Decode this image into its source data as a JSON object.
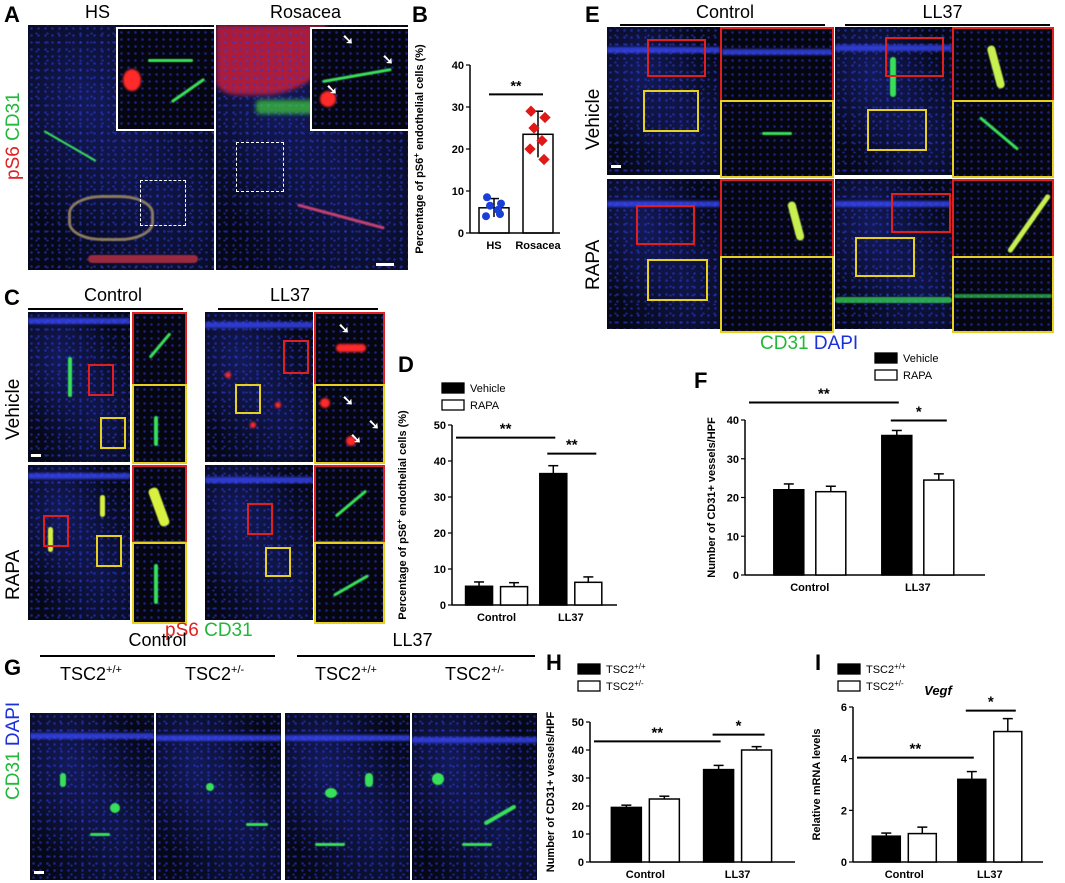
{
  "panels": {
    "A": {
      "letter": "A",
      "col1": "HS",
      "col2": "Rosacea",
      "ylabel_red": "pS6",
      "ylabel_green": "CD31"
    },
    "B": {
      "letter": "B"
    },
    "C": {
      "letter": "C",
      "col1": "Control",
      "col2": "LL37",
      "row1": "Vehicle",
      "row2": "RAPA",
      "stain_red": "pS6",
      "stain_green": "CD31"
    },
    "D": {
      "letter": "D"
    },
    "E": {
      "letter": "E",
      "col1": "Control",
      "col2": "LL37",
      "row1": "Vehicle",
      "row2": "RAPA",
      "stain_green": "CD31",
      "stain_blue": "DAPI"
    },
    "F": {
      "letter": "F"
    },
    "G": {
      "letter": "G",
      "group1": "Control",
      "group2": "LL37",
      "geno1": "TSC2",
      "geno1_sup": "+/+",
      "geno2": "TSC2",
      "geno2_sup": "+/-",
      "ylabel_green": "CD31",
      "ylabel_blue": "DAPI"
    },
    "H": {
      "letter": "H"
    },
    "I": {
      "letter": "I"
    }
  },
  "colors": {
    "red": "#ff2a2a",
    "green": "#38e05a",
    "blue": "#3448ff",
    "scatter_hs": "#1a3fd6",
    "scatter_rosacea": "#e01818"
  },
  "chart_data": [
    {
      "id": "B",
      "type": "scatter",
      "categories": [
        "HS",
        "Rosacea"
      ],
      "ylabel": "Percentage of pS6+ endothelial cells (%)",
      "ylabel_pre": "Percentage of pS6",
      "ylabel_sup": "+",
      "ylabel_post": " endothelial cells (%)",
      "ylim": [
        0,
        40
      ],
      "yticks": [
        0,
        10,
        20,
        30,
        40
      ],
      "bars": [
        6,
        23.5
      ],
      "errors": [
        2.2,
        5.5
      ],
      "points": [
        [
          8.5,
          7,
          6.5,
          5.5,
          4,
          4.5
        ],
        [
          29,
          27.5,
          25,
          22,
          20,
          17.5
        ]
      ],
      "significance": [
        {
          "from": 0,
          "to": 1,
          "label": "**"
        }
      ]
    },
    {
      "id": "D",
      "type": "bar",
      "categories": [
        "Control",
        "LL37"
      ],
      "series": [
        {
          "name": "Vehicle",
          "values": [
            5.2,
            36.5
          ],
          "errors": [
            1.2,
            2.2
          ]
        },
        {
          "name": "RAPA",
          "values": [
            5.1,
            6.3
          ],
          "errors": [
            1.1,
            1.5
          ]
        }
      ],
      "ylabel": "Percentage of pS6+ endothelial cells (%)",
      "ylabel_pre": "Percentage of pS6",
      "ylabel_sup": "+",
      "ylabel_post": " endothelial cells (%)",
      "ylim": [
        0,
        50
      ],
      "yticks": [
        0,
        10,
        20,
        30,
        40,
        50
      ],
      "significance": [
        {
          "label": "**",
          "span": "control-vehicle to ll37-vehicle"
        },
        {
          "label": "**",
          "span": "ll37-vehicle to ll37-rapa"
        }
      ]
    },
    {
      "id": "F",
      "type": "bar",
      "categories": [
        "Control",
        "LL37"
      ],
      "series": [
        {
          "name": "Vehicle",
          "values": [
            22,
            36
          ],
          "errors": [
            1.5,
            1.3
          ]
        },
        {
          "name": "RAPA",
          "values": [
            21.5,
            24.5
          ],
          "errors": [
            1.4,
            1.6
          ]
        }
      ],
      "ylabel": "Number of CD31+ vessels/HPF",
      "ylim": [
        0,
        40
      ],
      "yticks": [
        0,
        10,
        20,
        30,
        40
      ],
      "significance": [
        {
          "label": "**"
        },
        {
          "label": "*"
        }
      ]
    },
    {
      "id": "H",
      "type": "bar",
      "categories": [
        "Control",
        "LL37"
      ],
      "series": [
        {
          "name": "TSC2",
          "sup": "+/+",
          "values": [
            19.5,
            33
          ],
          "errors": [
            0.8,
            1.5
          ]
        },
        {
          "name": "TSC2",
          "sup": "+/-",
          "values": [
            22.5,
            40
          ],
          "errors": [
            1,
            1.2
          ]
        }
      ],
      "ylabel": "Number of CD31+ vessels/HPF",
      "ylim": [
        0,
        50
      ],
      "yticks": [
        0,
        10,
        20,
        30,
        40,
        50
      ],
      "significance": [
        {
          "label": "**"
        },
        {
          "label": "*"
        }
      ]
    },
    {
      "id": "I",
      "type": "bar",
      "title": "Vegf",
      "categories": [
        "Control",
        "LL37"
      ],
      "series": [
        {
          "name": "TSC2",
          "sup": "+/+",
          "values": [
            1,
            3.2
          ],
          "errors": [
            0.12,
            0.3
          ]
        },
        {
          "name": "TSC2",
          "sup": "+/-",
          "values": [
            1.1,
            5.05
          ],
          "errors": [
            0.25,
            0.5
          ]
        }
      ],
      "ylabel": "Relative mRNA levels",
      "ylim": [
        0,
        6
      ],
      "yticks": [
        0,
        2,
        4,
        6
      ],
      "significance": [
        {
          "label": "**"
        },
        {
          "label": "*"
        }
      ]
    }
  ]
}
